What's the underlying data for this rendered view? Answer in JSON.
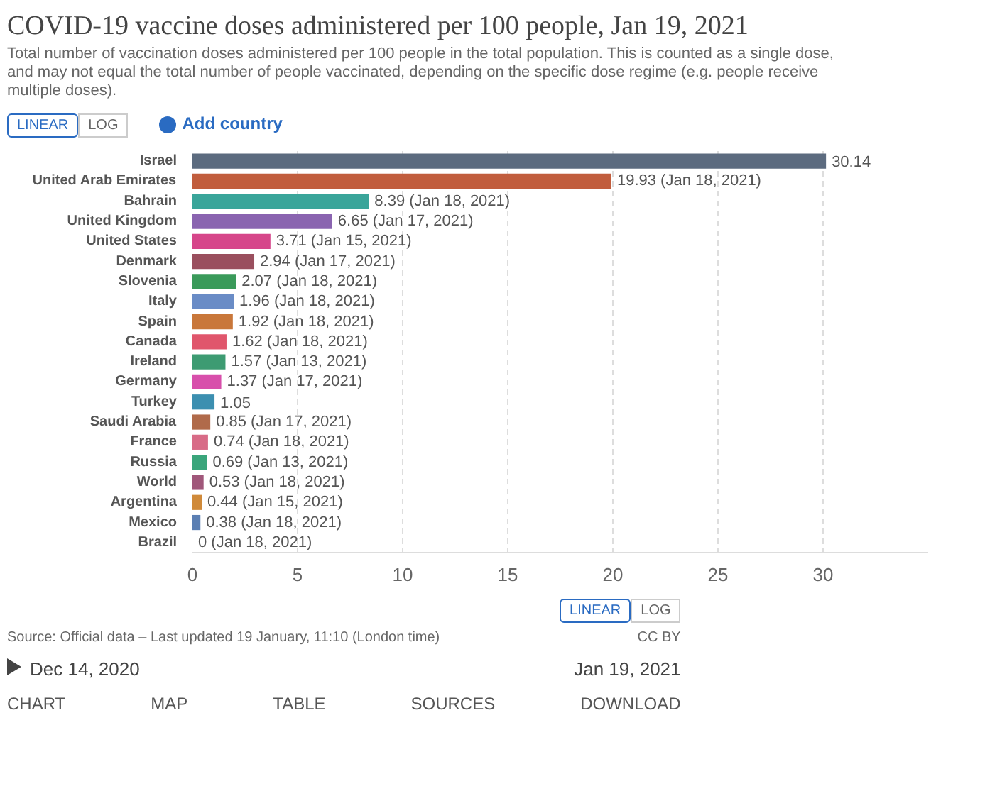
{
  "chart_data": {
    "type": "bar",
    "orientation": "horizontal",
    "title": "COVID-19 vaccine doses administered per 100 people, Jan 19, 2021",
    "subtitle": "Total number of vaccination doses administered per 100 people in the total population. This is counted as a single dose, and may not equal the total number of people vaccinated, depending on the specific dose regime (e.g. people receive multiple doses).",
    "categories": [
      "Israel",
      "United Arab Emirates",
      "Bahrain",
      "United Kingdom",
      "United States",
      "Denmark",
      "Slovenia",
      "Italy",
      "Spain",
      "Canada",
      "Ireland",
      "Germany",
      "Turkey",
      "Saudi Arabia",
      "France",
      "Russia",
      "World",
      "Argentina",
      "Mexico",
      "Brazil"
    ],
    "values": [
      30.14,
      19.93,
      8.39,
      6.65,
      3.71,
      2.94,
      2.07,
      1.96,
      1.92,
      1.62,
      1.57,
      1.37,
      1.05,
      0.85,
      0.74,
      0.69,
      0.53,
      0.44,
      0.38,
      0
    ],
    "value_labels": [
      "30.14",
      "19.93 (Jan 18, 2021)",
      "8.39 (Jan 18, 2021)",
      "6.65 (Jan 17, 2021)",
      "3.71 (Jan 15, 2021)",
      "2.94 (Jan 17, 2021)",
      "2.07 (Jan 18, 2021)",
      "1.96 (Jan 18, 2021)",
      "1.92 (Jan 18, 2021)",
      "1.62 (Jan 18, 2021)",
      "1.57 (Jan 13, 2021)",
      "1.37 (Jan 17, 2021)",
      "1.05",
      "0.85 (Jan 17, 2021)",
      "0.74 (Jan 18, 2021)",
      "0.69 (Jan 13, 2021)",
      "0.53 (Jan 18, 2021)",
      "0.44 (Jan 15, 2021)",
      "0.38 (Jan 18, 2021)",
      "0 (Jan 18, 2021)"
    ],
    "colors": [
      "#5c6b7f",
      "#c15d3d",
      "#3aa59a",
      "#8a64b0",
      "#d6468a",
      "#9a4f5e",
      "#3a9a5a",
      "#6a8cc6",
      "#c9773a",
      "#e0566c",
      "#3d9b72",
      "#d84fab",
      "#3c8fb0",
      "#b06a4a",
      "#d86b87",
      "#3aa57b",
      "#a0577a",
      "#d08a3a",
      "#5b7fb3",
      "#888888"
    ],
    "xlim": [
      0,
      35
    ],
    "xticks": [
      0,
      5,
      10,
      15,
      20,
      25,
      30
    ],
    "grid": "x",
    "annotations": [
      "LINEAR",
      "LOG",
      "Add country",
      "LINEAR",
      "LOG",
      "Source: Official data – Last updated 19 January, 11:10 (London time)",
      "CC BY",
      "Dec 14, 2020",
      "Jan 19, 2021",
      "CHART",
      "MAP",
      "TABLE",
      "SOURCES",
      "DOWNLOAD"
    ]
  }
}
